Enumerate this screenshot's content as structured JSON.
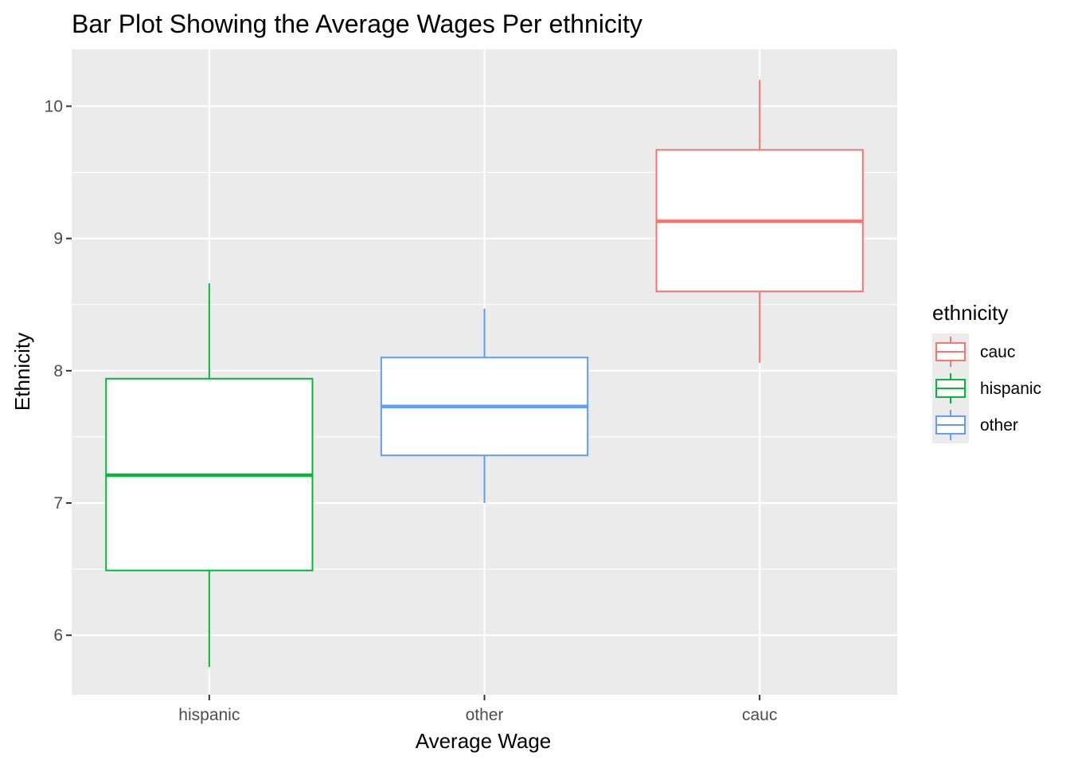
{
  "chart_data": {
    "type": "boxplot",
    "title": "Bar Plot Showing the Average Wages Per ethnicity",
    "xlabel": "Average Wage",
    "ylabel": "Ethnicity",
    "categories": [
      "hispanic",
      "other",
      "cauc"
    ],
    "ylim": [
      5.55,
      10.43
    ],
    "yticks": [
      6,
      7,
      8,
      9,
      10
    ],
    "grid": true,
    "legend": {
      "title": "ethnicity",
      "position": "right",
      "entries": [
        "cauc",
        "hispanic",
        "other"
      ]
    },
    "series": [
      {
        "name": "hispanic",
        "color": "#00BA38",
        "min": 5.76,
        "q1": 6.49,
        "median": 7.21,
        "q3": 7.94,
        "max": 8.66
      },
      {
        "name": "other",
        "color": "#619CFF",
        "min": 7.0,
        "q1": 7.36,
        "median": 7.73,
        "q3": 8.1,
        "max": 8.47
      },
      {
        "name": "cauc",
        "color": "#F8766D",
        "min": 8.06,
        "q1": 8.6,
        "median": 9.13,
        "q3": 9.67,
        "max": 10.2
      }
    ],
    "colors": {
      "panel": "#EBEBEB",
      "grid_major": "#FFFFFF",
      "box_fill": "#FFFFFF",
      "tick": "#333333"
    }
  }
}
